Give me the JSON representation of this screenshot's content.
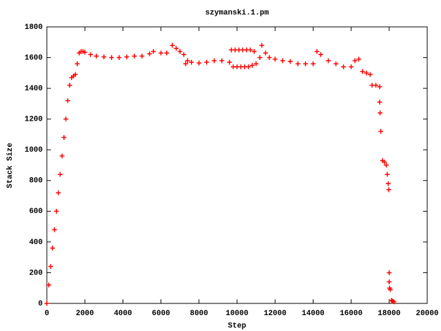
{
  "chart_data": {
    "type": "scatter",
    "title": "szymanski.1.pm",
    "x_label": "Step",
    "y_label": "Stack Size",
    "marker": "plus",
    "color": "#ff0000",
    "xlim": [
      0,
      20000
    ],
    "ylim": [
      0,
      1800
    ],
    "xticks": [
      0,
      2000,
      4000,
      6000,
      8000,
      10000,
      12000,
      14000,
      16000,
      18000,
      20000
    ],
    "yticks": [
      0,
      200,
      400,
      600,
      800,
      1000,
      1200,
      1400,
      1600,
      1800
    ],
    "x": [
      0,
      100,
      200,
      300,
      400,
      500,
      600,
      700,
      800,
      900,
      1000,
      1100,
      1200,
      1300,
      1400,
      1500,
      1600,
      1700,
      1800,
      1900,
      2000,
      2300,
      2600,
      3000,
      3400,
      3800,
      4200,
      4600,
      5000,
      5400,
      5600,
      6000,
      6300,
      6600,
      6800,
      7000,
      7200,
      7300,
      7400,
      7600,
      8000,
      8400,
      8800,
      9200,
      9600,
      9700,
      9800,
      9900,
      10000,
      10100,
      10200,
      10300,
      10400,
      10500,
      10600,
      10700,
      10800,
      10900,
      11000,
      11200,
      11300,
      11500,
      11700,
      12000,
      12400,
      12800,
      13200,
      13600,
      14000,
      14200,
      14400,
      14800,
      15200,
      15600,
      16000,
      16200,
      16400,
      16600,
      16800,
      17000,
      17100,
      17300,
      17500,
      17500,
      17520,
      17560,
      17650,
      17750,
      17850,
      17900,
      17950,
      17980,
      18000,
      18000,
      18020,
      18060,
      18120,
      18180,
      18250
    ],
    "values": [
      0,
      120,
      240,
      360,
      480,
      600,
      720,
      840,
      960,
      1080,
      1200,
      1320,
      1420,
      1470,
      1480,
      1490,
      1560,
      1630,
      1640,
      1640,
      1635,
      1620,
      1610,
      1605,
      1600,
      1600,
      1605,
      1610,
      1610,
      1625,
      1640,
      1630,
      1630,
      1680,
      1660,
      1640,
      1620,
      1560,
      1580,
      1570,
      1565,
      1570,
      1580,
      1580,
      1570,
      1650,
      1540,
      1650,
      1540,
      1650,
      1540,
      1650,
      1540,
      1650,
      1540,
      1650,
      1550,
      1640,
      1560,
      1600,
      1680,
      1630,
      1600,
      1590,
      1580,
      1575,
      1560,
      1560,
      1560,
      1640,
      1620,
      1580,
      1560,
      1540,
      1540,
      1580,
      1590,
      1510,
      1500,
      1490,
      1420,
      1420,
      1410,
      1310,
      1240,
      1120,
      930,
      920,
      900,
      840,
      780,
      740,
      200,
      140,
      100,
      90,
      20,
      15,
      10
    ]
  }
}
